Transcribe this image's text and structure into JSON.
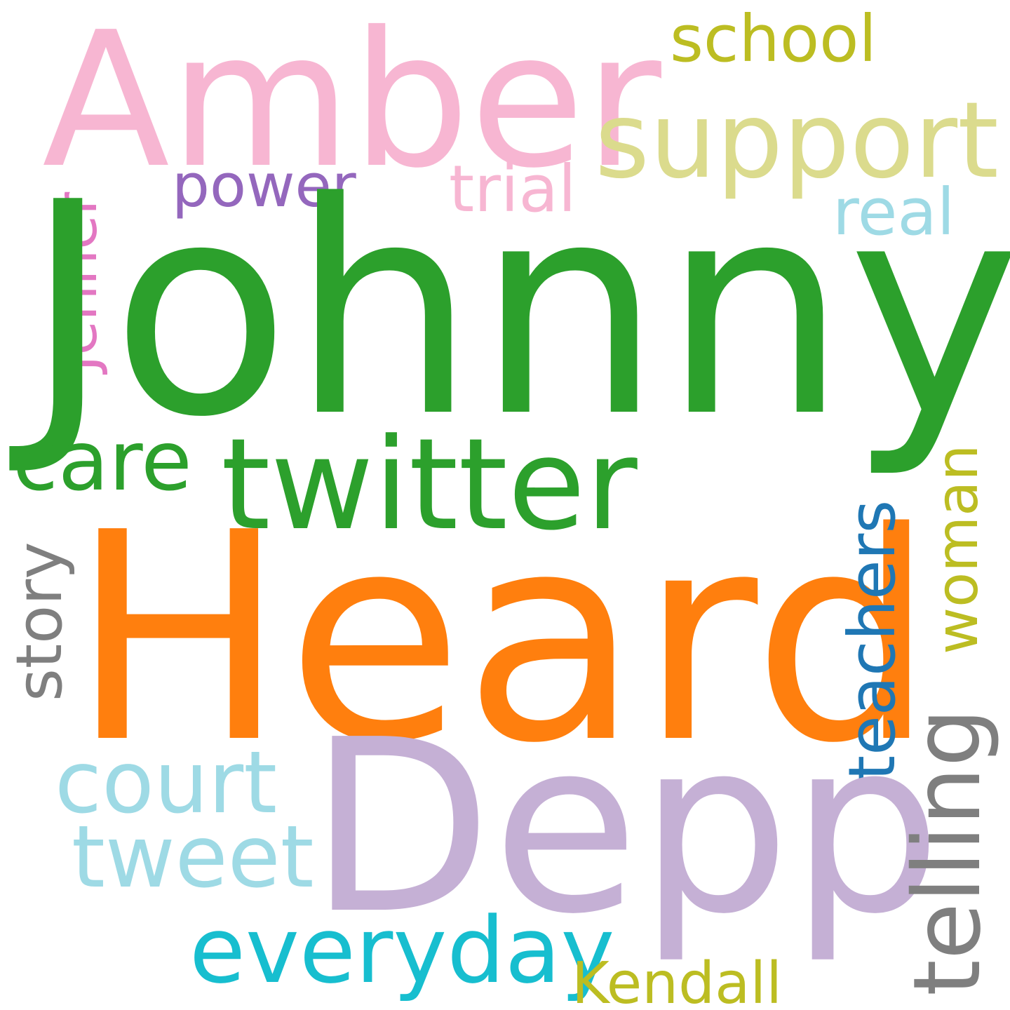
{
  "words": {
    "johnny": {
      "text": "Johnny",
      "color": "#2ca02c"
    },
    "heard": {
      "text": "Heard",
      "color": "#ff7f0e"
    },
    "depp": {
      "text": "Depp",
      "color": "#c5b0d5"
    },
    "amber": {
      "text": "Amber",
      "color": "#f7b6d2"
    },
    "twitter": {
      "text": "twitter",
      "color": "#2ca02c"
    },
    "support": {
      "text": "support",
      "color": "#dbdb8d"
    },
    "telling": {
      "text": "telling",
      "color": "#7f7f7f"
    },
    "everyday": {
      "text": "everyday",
      "color": "#17becf"
    },
    "court": {
      "text": "court",
      "color": "#9edae5"
    },
    "tweet": {
      "text": "tweet",
      "color": "#9edae5"
    },
    "care": {
      "text": "care",
      "color": "#2ca02c"
    },
    "school": {
      "text": "school",
      "color": "#bcbd22"
    },
    "trial": {
      "text": "trial",
      "color": "#f7b6d2"
    },
    "real": {
      "text": "real",
      "color": "#9edae5"
    },
    "teachers": {
      "text": "teachers",
      "color": "#1f77b4"
    },
    "story": {
      "text": "story",
      "color": "#7f7f7f"
    },
    "power": {
      "text": "power",
      "color": "#9467bd"
    },
    "woman": {
      "text": "woman",
      "color": "#bcbd22"
    },
    "kendall": {
      "text": "Kendall",
      "color": "#bcbd22"
    },
    "jenner": {
      "text": "Jenner",
      "color": "#e377c2"
    }
  }
}
